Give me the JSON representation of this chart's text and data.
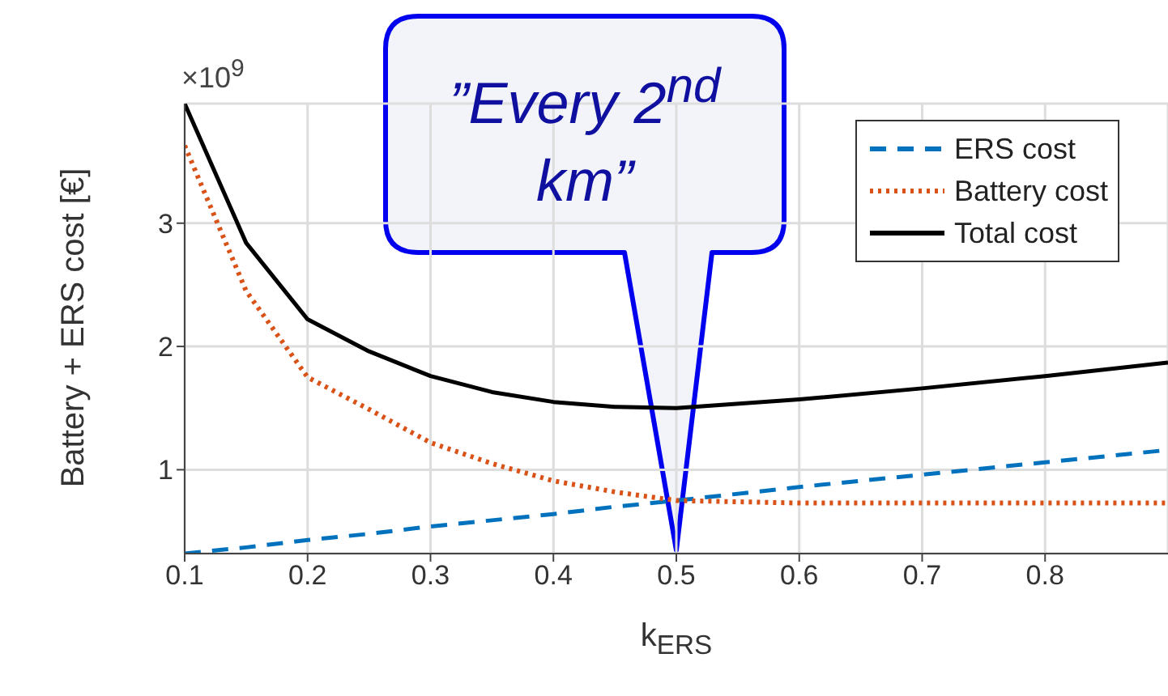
{
  "chart_data": {
    "type": "line",
    "xlabel": "k$_{ERS}$",
    "ylabel": "Battery + ERS cost [€]",
    "annotations": [
      "×10$^{9}$",
      "”Every 2$^{nd}$ km”"
    ],
    "x": [
      0.1,
      0.15,
      0.2,
      0.25,
      0.3,
      0.35,
      0.4,
      0.45,
      0.5,
      0.6,
      0.7,
      0.8,
      0.9
    ],
    "series": [
      {
        "name": "ERS cost",
        "color": "#0072bd",
        "line_style": "dashed",
        "values": [
          0.32,
          0.37,
          0.43,
          0.48,
          0.54,
          0.59,
          0.64,
          0.7,
          0.75,
          0.86,
          0.96,
          1.06,
          1.16
        ]
      },
      {
        "name": "Battery cost",
        "color": "#d95319",
        "line_style": "dotted",
        "values": [
          3.63,
          2.45,
          1.75,
          1.49,
          1.22,
          1.05,
          0.91,
          0.82,
          0.75,
          0.73,
          0.73,
          0.73,
          0.73
        ]
      },
      {
        "name": "Total cost",
        "color": "#000000",
        "line_style": "solid",
        "values": [
          3.97,
          2.84,
          2.22,
          1.96,
          1.76,
          1.63,
          1.55,
          1.51,
          1.5,
          1.57,
          1.66,
          1.76,
          1.87
        ]
      }
    ],
    "xlim": [
      0.1,
      0.9
    ],
    "xticks": [
      0.1,
      0.2,
      0.3,
      0.4,
      0.5,
      0.6,
      0.7,
      0.8
    ],
    "ylim": [
      0.32,
      3.97
    ],
    "yticks": [
      1,
      2,
      3
    ],
    "grid": true,
    "legend": "top right",
    "marker": "none"
  }
}
